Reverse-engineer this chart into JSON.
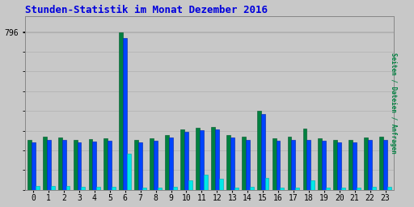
{
  "title": "Stunden-Statistik im Monat Dezember 2016",
  "title_color": "#0000dd",
  "background_color": "#c8c8c8",
  "plot_bg_color": "#c8c8c8",
  "hours": [
    0,
    1,
    2,
    3,
    4,
    5,
    6,
    7,
    8,
    9,
    10,
    11,
    12,
    13,
    14,
    15,
    16,
    17,
    18,
    19,
    20,
    21,
    22,
    23
  ],
  "seiten": [
    255,
    268,
    265,
    255,
    258,
    262,
    796,
    255,
    262,
    278,
    308,
    315,
    320,
    278,
    268,
    400,
    262,
    268,
    310,
    262,
    255,
    255,
    265,
    268
  ],
  "dateien": [
    240,
    255,
    252,
    242,
    245,
    250,
    770,
    242,
    250,
    265,
    295,
    302,
    308,
    265,
    255,
    385,
    250,
    255,
    255,
    250,
    242,
    242,
    252,
    255
  ],
  "anfragen": [
    18,
    18,
    18,
    14,
    14,
    14,
    185,
    10,
    12,
    14,
    48,
    78,
    58,
    12,
    14,
    60,
    12,
    12,
    48,
    12,
    10,
    10,
    16,
    16
  ],
  "colors": {
    "seiten": "#008040",
    "dateien": "#0044ff",
    "anfragen": "#00e8e8"
  },
  "ymax": 880,
  "grid_color": "#b0b0b0",
  "border_color": "#888888",
  "bar_width": 0.26
}
